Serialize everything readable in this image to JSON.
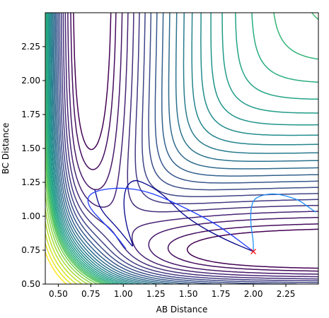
{
  "chart_data": {
    "type": "contour",
    "title": "",
    "xlabel": "AB Distance",
    "ylabel": "BC Distance",
    "xlim": [
      0.4,
      2.5
    ],
    "ylim": [
      0.5,
      2.5
    ],
    "grid": false,
    "legend": "none",
    "xticks": [
      "0.50",
      "0.75",
      "1.00",
      "1.25",
      "1.50",
      "1.75",
      "2.00",
      "2.25"
    ],
    "yticks": [
      "0.50",
      "0.75",
      "1.00",
      "1.25",
      "1.50",
      "1.75",
      "2.00",
      "2.25"
    ],
    "colormap": "viridis",
    "potential_model": "LEPS-like: well near (2.0, 0.74), steep repulsive wall at small AB or BC",
    "levels": [
      -4.35,
      -4.2,
      -4.0,
      -3.8,
      -3.6,
      -3.4,
      -3.2,
      -3.0,
      -2.8,
      -2.6,
      -2.4,
      -2.2,
      -2.0,
      -1.8,
      -1.6,
      -1.4,
      -1.2,
      -1.0,
      -0.8,
      -0.6,
      -0.4,
      -0.2,
      0.0,
      0.3,
      0.7,
      1.2,
      1.8,
      2.5,
      3.3,
      4.2
    ],
    "trajectories": [
      {
        "color": "#00008b",
        "points": [
          [
            2.0,
            0.74
          ],
          [
            1.8,
            0.82
          ],
          [
            1.6,
            0.92
          ],
          [
            1.45,
            1.02
          ],
          [
            1.35,
            1.12
          ],
          [
            1.25,
            1.2
          ],
          [
            1.15,
            1.25
          ],
          [
            1.08,
            1.27
          ],
          [
            1.02,
            1.22
          ],
          [
            1.0,
            1.1
          ],
          [
            1.02,
            0.95
          ],
          [
            1.05,
            0.85
          ],
          [
            1.08,
            0.77
          ],
          [
            1.05,
            0.8
          ],
          [
            0.95,
            0.92
          ],
          [
            0.82,
            1.05
          ],
          [
            0.78,
            1.2
          ]
        ]
      },
      {
        "color": "#1f3cff",
        "points": [
          [
            1.02,
            0.76
          ],
          [
            0.95,
            0.85
          ],
          [
            0.85,
            0.95
          ],
          [
            0.75,
            1.05
          ],
          [
            0.72,
            1.12
          ],
          [
            0.75,
            1.17
          ],
          [
            0.85,
            1.2
          ],
          [
            1.0,
            1.21
          ],
          [
            1.15,
            1.19
          ],
          [
            1.3,
            1.14
          ],
          [
            1.5,
            1.05
          ],
          [
            1.7,
            0.95
          ],
          [
            1.85,
            0.85
          ],
          [
            2.0,
            0.74
          ]
        ]
      },
      {
        "color": "#1e90ff",
        "points": [
          [
            2.0,
            0.74
          ],
          [
            2.0,
            0.8
          ],
          [
            1.99,
            0.88
          ],
          [
            1.98,
            0.95
          ],
          [
            1.98,
            1.05
          ],
          [
            2.0,
            1.12
          ],
          [
            2.05,
            1.15
          ],
          [
            2.15,
            1.17
          ],
          [
            2.25,
            1.15
          ],
          [
            2.35,
            1.12
          ],
          [
            2.42,
            1.07
          ],
          [
            2.48,
            1.03
          ]
        ]
      }
    ],
    "marker": {
      "symbol": "x",
      "color": "#ff0000",
      "x": 2.0,
      "y": 0.74
    }
  }
}
